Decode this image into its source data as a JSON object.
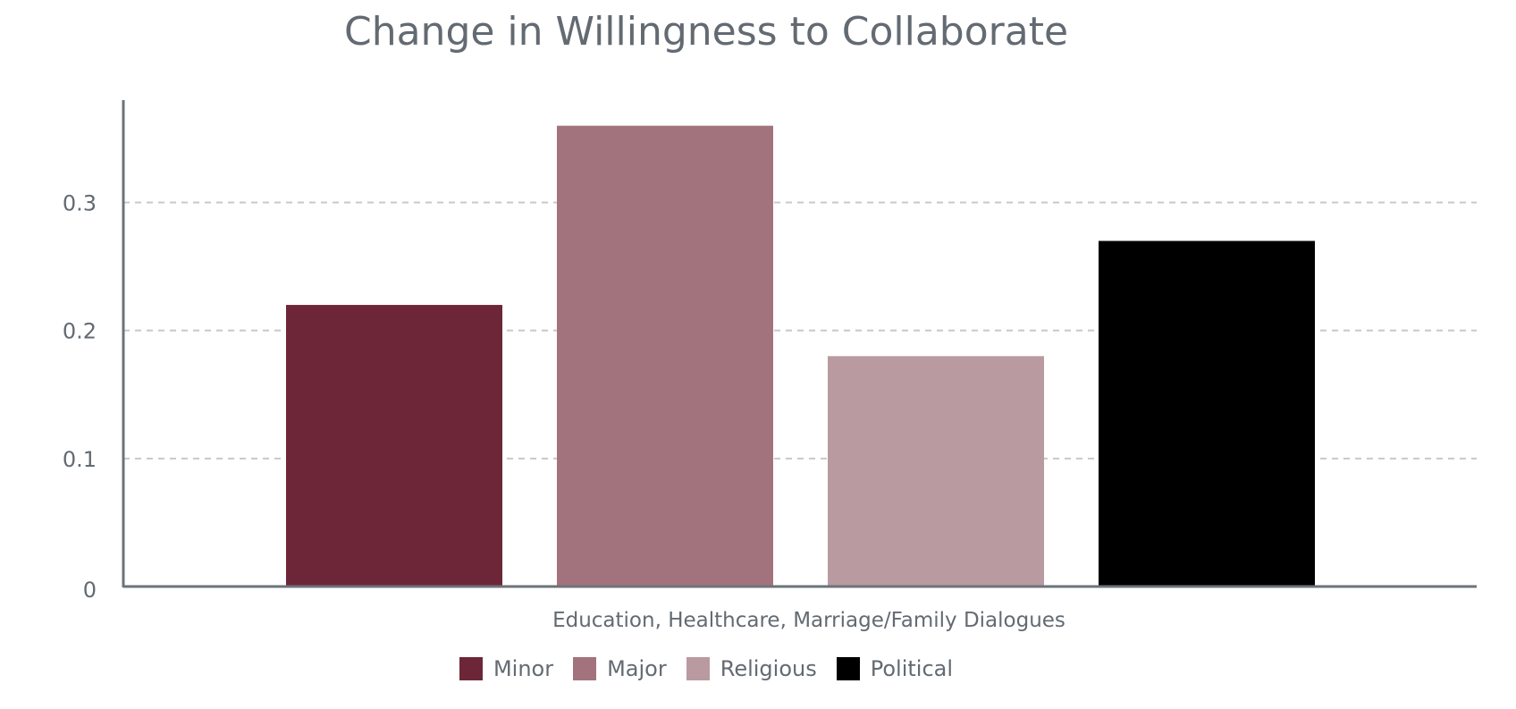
{
  "chart_data": {
    "type": "bar",
    "title": "Change in Willingness to Collaborate",
    "categories": [
      "Education, Healthcare, Marriage/Family Dialogues"
    ],
    "series": [
      {
        "name": "Minor",
        "values": [
          0.22
        ],
        "color": "#6d2638"
      },
      {
        "name": "Major",
        "values": [
          0.36
        ],
        "color": "#a3737d"
      },
      {
        "name": "Religious",
        "values": [
          0.18
        ],
        "color": "#b99aa1"
      },
      {
        "name": "Political",
        "values": [
          0.27
        ],
        "color": "#000000"
      }
    ],
    "yticks": [
      "0",
      "0.1",
      "0.2",
      "0.3"
    ],
    "ylim": [
      0,
      0.38
    ],
    "grid": true,
    "grid_style": "dashed",
    "legend_position": "bottom-center"
  }
}
